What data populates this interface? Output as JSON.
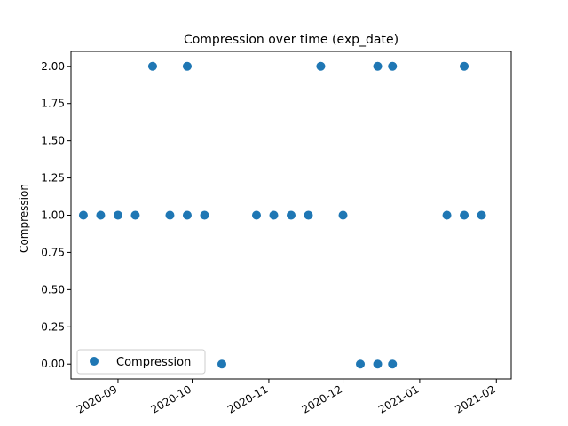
{
  "chart_data": {
    "type": "scatter",
    "title": "Compression  over time (exp_date)",
    "xlabel": "",
    "ylabel": "Compression",
    "xlim": [
      "2020-08-13",
      "2021-02-07"
    ],
    "ylim": [
      -0.1,
      2.1
    ],
    "yticks": [
      "0.00",
      "0.25",
      "0.50",
      "0.75",
      "1.00",
      "1.25",
      "1.50",
      "1.75",
      "2.00"
    ],
    "xticks": [
      "2020-09",
      "2020-10",
      "2020-11",
      "2020-12",
      "2021-01",
      "2021-02"
    ],
    "grid": false,
    "legend_position": "lower-left",
    "color": "#1f77b4",
    "series": [
      {
        "name": "Compression",
        "x": [
          "2020-08-18",
          "2020-08-25",
          "2020-09-01",
          "2020-09-08",
          "2020-09-15",
          "2020-09-22",
          "2020-09-29",
          "2020-09-29",
          "2020-10-06",
          "2020-10-13",
          "2020-10-27",
          "2020-11-03",
          "2020-11-10",
          "2020-11-17",
          "2020-11-22",
          "2020-12-01",
          "2020-12-08",
          "2020-12-15",
          "2020-12-15",
          "2020-12-21",
          "2020-12-21",
          "2021-01-12",
          "2021-01-19",
          "2021-01-19",
          "2021-01-26"
        ],
        "y": [
          1,
          1,
          1,
          1,
          2,
          1,
          1,
          2,
          1,
          0,
          1,
          1,
          1,
          1,
          2,
          1,
          0,
          0,
          2,
          0,
          2,
          1,
          1,
          2,
          1
        ]
      }
    ]
  }
}
